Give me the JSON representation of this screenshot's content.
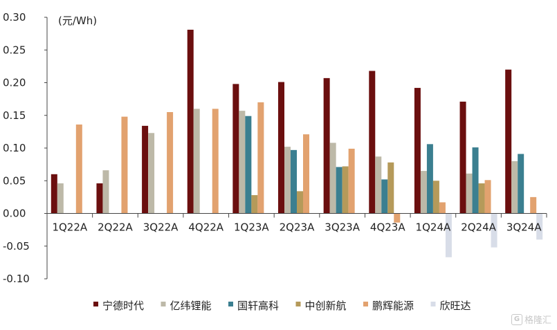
{
  "chart_data": {
    "type": "bar",
    "unit_label": "(元/Wh)",
    "categories": [
      "1Q22A",
      "2Q22A",
      "3Q22A",
      "4Q22A",
      "1Q23A",
      "2Q23A",
      "3Q23A",
      "4Q23A",
      "1Q24A",
      "2Q24A",
      "3Q24A"
    ],
    "ylim": [
      -0.1,
      0.3
    ],
    "yticks": [
      -0.1,
      -0.05,
      0.0,
      0.05,
      0.1,
      0.15,
      0.2,
      0.25,
      0.3
    ],
    "ytick_labels": [
      "-0.10",
      "-0.05",
      "0.00",
      "0.05",
      "0.10",
      "0.15",
      "0.20",
      "0.25",
      "0.30"
    ],
    "grid": false,
    "legend_position": "bottom",
    "series": [
      {
        "name": "宁德时代",
        "color": "#6b0f0f",
        "values": [
          0.06,
          0.046,
          0.134,
          0.281,
          0.198,
          0.201,
          0.207,
          0.218,
          0.192,
          0.171,
          0.22
        ]
      },
      {
        "name": "亿纬锂能",
        "color": "#bdb9a8",
        "values": [
          0.046,
          0.066,
          0.123,
          0.16,
          0.157,
          0.102,
          0.108,
          0.087,
          0.065,
          0.061,
          0.08
        ]
      },
      {
        "name": "国轩高科",
        "color": "#3b7f90",
        "values": [
          null,
          null,
          null,
          null,
          0.149,
          0.097,
          0.071,
          0.052,
          0.106,
          0.101,
          0.091
        ]
      },
      {
        "name": "中创新航",
        "color": "#b59a5a",
        "values": [
          null,
          null,
          null,
          null,
          0.028,
          0.034,
          0.072,
          0.078,
          0.05,
          0.046,
          null
        ]
      },
      {
        "name": "鹏辉能源",
        "color": "#e2a26f",
        "values": [
          0.136,
          0.148,
          0.155,
          0.16,
          0.17,
          0.121,
          0.099,
          -0.014,
          0.017,
          0.051,
          0.025
        ]
      },
      {
        "name": "欣旺达",
        "color": "#d8dde8",
        "values": [
          null,
          null,
          null,
          null,
          null,
          null,
          null,
          null,
          -0.067,
          -0.052,
          -0.04
        ]
      }
    ]
  },
  "watermark": {
    "icon": "G",
    "text": "格隆汇"
  }
}
